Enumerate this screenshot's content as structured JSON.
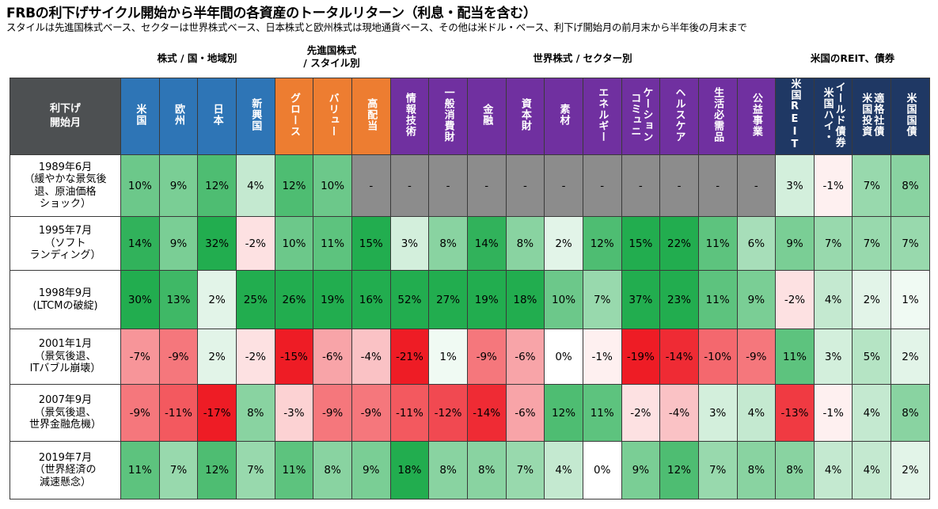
{
  "title": "FRBの利下げサイクル開始から半年間の各資産のトータルリターン（利息・配当を含む）",
  "subtitle": "スタイルは先進国株式ベース、セクターは世界株式ベース、日本株式と欧州株式は現地通貨ベース、その他は米ドル・ベース、利下げ開始月の前月末から半年後の月末まで",
  "groups": {
    "region": "株式 / 国・地域別",
    "style_line1": "先進国株式",
    "style_line2": "/ スタイル別",
    "sector": "世界株式 / セクター別",
    "reit_bond": "米国のREIT、債券"
  },
  "corner": {
    "line1": "利下げ",
    "line2": "開始月"
  },
  "colors": {
    "region": "#2e75b6",
    "style": "#ed7d31",
    "sector": "#7030a0",
    "reit_bond": "#1f3864",
    "corner": "#4d5052",
    "na": "#8c8c8c"
  },
  "chart_data": {
    "type": "table",
    "title": "FRBの利下げサイクル開始から半年間の各資産のトータルリターン（利息・配当を含む）",
    "unit": "%",
    "columns": [
      {
        "label": "米国",
        "group": "region"
      },
      {
        "label": "欧州",
        "group": "region"
      },
      {
        "label": "日本",
        "group": "region"
      },
      {
        "label": "新興国",
        "group": "region"
      },
      {
        "label": "グロース",
        "group": "style"
      },
      {
        "label": "バリュー",
        "group": "style"
      },
      {
        "label": "高配当",
        "group": "style"
      },
      {
        "label": "情報技術",
        "group": "sector"
      },
      {
        "label": "一般消費財",
        "group": "sector"
      },
      {
        "label": "金融",
        "group": "sector"
      },
      {
        "label": "資本財",
        "group": "sector"
      },
      {
        "label": "素材",
        "group": "sector"
      },
      {
        "label": "エネルギー",
        "group": "sector"
      },
      {
        "label": "ケーション\nコミュニ",
        "group": "sector"
      },
      {
        "label": "ヘルスケア",
        "group": "sector"
      },
      {
        "label": "生活必需品",
        "group": "sector"
      },
      {
        "label": "公益事業",
        "group": "sector"
      },
      {
        "label": "米国REIT",
        "group": "reit_bond"
      },
      {
        "label": "イールド債券\n米国ハイ・",
        "group": "reit_bond"
      },
      {
        "label": "適格社債\n米国投資",
        "group": "reit_bond"
      },
      {
        "label": "米国国債",
        "group": "reit_bond"
      }
    ],
    "rows": [
      {
        "label": [
          "1989年6月",
          "（緩やかな景気後",
          "退、原油価格",
          "ショック）"
        ],
        "values": [
          10,
          9,
          12,
          4,
          12,
          10,
          null,
          null,
          null,
          null,
          null,
          null,
          null,
          null,
          null,
          null,
          null,
          3,
          -1,
          7,
          8
        ]
      },
      {
        "label": [
          "1995年7月",
          "（ソフト",
          "ランディング）"
        ],
        "values": [
          14,
          9,
          32,
          -2,
          10,
          11,
          15,
          3,
          8,
          14,
          8,
          2,
          12,
          15,
          22,
          11,
          6,
          9,
          7,
          7,
          7
        ]
      },
      {
        "label": [
          "1998年9月",
          "(LTCMの破綻)"
        ],
        "values": [
          30,
          13,
          2,
          25,
          26,
          19,
          16,
          52,
          27,
          19,
          18,
          10,
          7,
          37,
          23,
          11,
          9,
          -2,
          4,
          2,
          1
        ]
      },
      {
        "label": [
          "2001年1月",
          "（景気後退、",
          "ITバブル崩壊）"
        ],
        "values": [
          -7,
          -9,
          2,
          -2,
          -15,
          -6,
          -4,
          -21,
          1,
          -9,
          -6,
          0,
          -1,
          -19,
          -14,
          -10,
          -9,
          11,
          3,
          5,
          2
        ]
      },
      {
        "label": [
          "2007年9月",
          "（景気後退、",
          "世界金融危機）"
        ],
        "values": [
          -9,
          -11,
          -17,
          8,
          -3,
          -9,
          -9,
          -11,
          -12,
          -14,
          -6,
          12,
          11,
          -2,
          -4,
          3,
          4,
          -13,
          -1,
          4,
          8
        ]
      },
      {
        "label": [
          "2019年7月",
          "（世界経済の",
          "減速懸念）"
        ],
        "values": [
          11,
          7,
          12,
          7,
          11,
          8,
          9,
          18,
          8,
          8,
          7,
          4,
          0,
          9,
          12,
          7,
          8,
          8,
          4,
          4,
          2
        ]
      }
    ],
    "na_label": "-"
  }
}
